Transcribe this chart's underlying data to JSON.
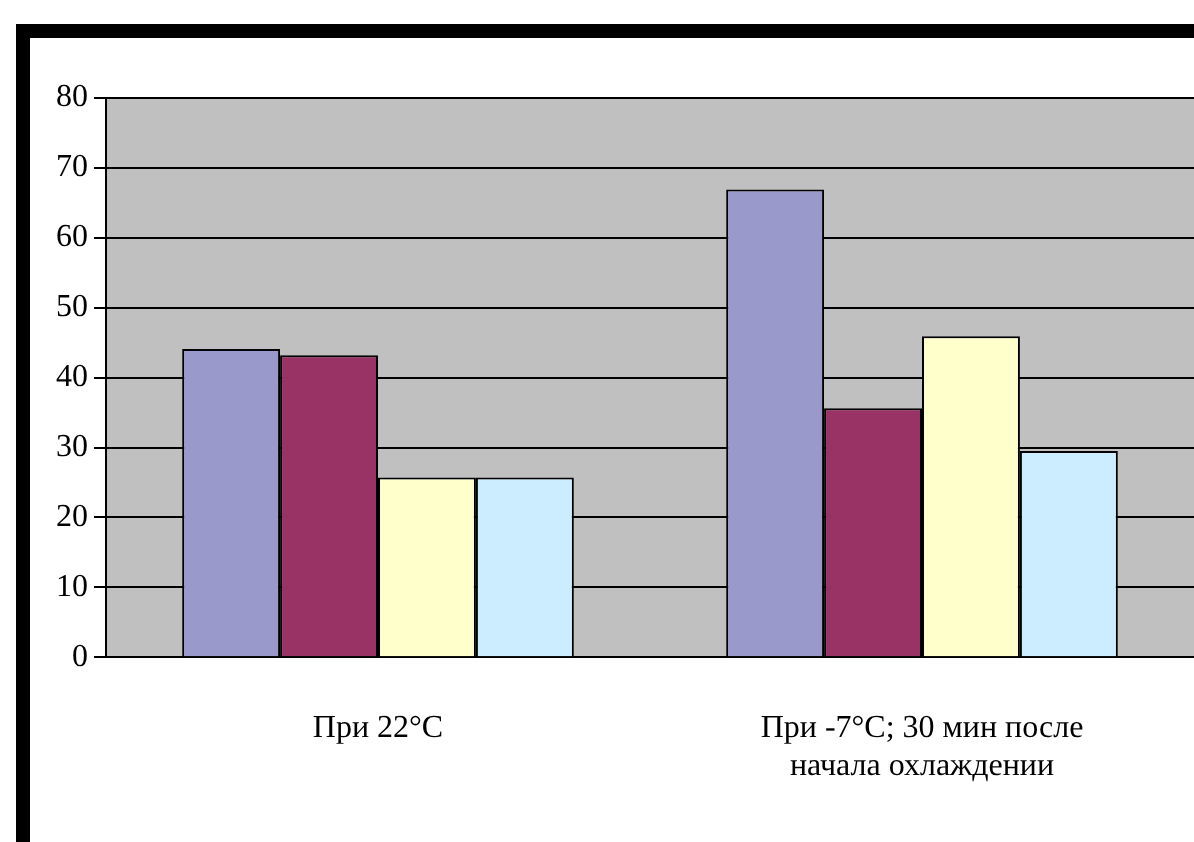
{
  "chart_data": {
    "type": "bar",
    "categories": [
      "При 22°С",
      "При -7°С; 30 мин после начала охлаждении"
    ],
    "series": [
      {
        "color": "#9999cc",
        "values": [
          44.1,
          66.9
        ]
      },
      {
        "color": "#993366",
        "values": [
          43.2,
          35.6
        ]
      },
      {
        "color": "#ffffcc",
        "values": [
          25.7,
          45.9
        ]
      },
      {
        "color": "#ccecff",
        "values": [
          25.7,
          29.5
        ]
      }
    ],
    "ylim": [
      0,
      80
    ],
    "yticks": [
      0,
      10,
      20,
      30,
      40,
      50,
      60,
      70,
      80
    ],
    "grid": "y",
    "legend": false
  }
}
